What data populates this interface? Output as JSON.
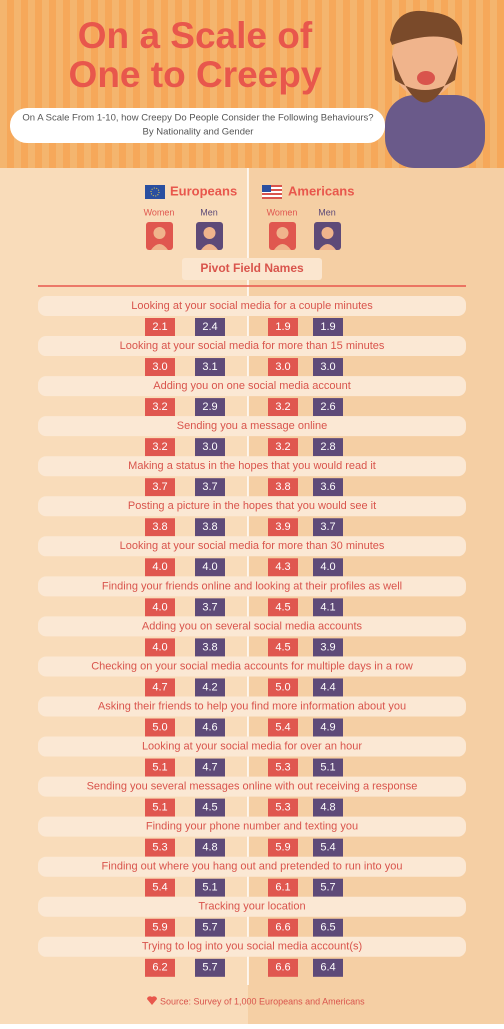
{
  "header": {
    "title_line1": "On a Scale of",
    "title_line2": "One to Creepy",
    "subtitle_line1": "On A Scale From 1-10, how Creepy Do People Consider the Following Behaviours?",
    "subtitle_line2": "By Nationality and Gender"
  },
  "legend": {
    "groups": [
      "Europeans",
      "Americans"
    ],
    "women": "Women",
    "men": "Men",
    "field_title": "Pivot Field Names"
  },
  "table": {
    "rows": [
      [
        "Looking at your social media for a couple minutes",
        "2.1",
        "2.4",
        "1.9",
        "1.9"
      ],
      [
        "Looking at your social media for more than 15 minutes",
        "3.0",
        "3.1",
        "3.0",
        "3.0"
      ],
      [
        "Adding you on one social media account",
        "3.2",
        "2.9",
        "3.2",
        "2.6"
      ],
      [
        "Sending you a message online",
        "3.2",
        "3.0",
        "3.2",
        "2.8"
      ],
      [
        "Making a status in the hopes that you would read it",
        "3.7",
        "3.7",
        "3.8",
        "3.6"
      ],
      [
        "Posting a picture in the hopes that you would see it",
        "3.8",
        "3.8",
        "3.9",
        "3.7"
      ],
      [
        "Looking at your social media for more than 30 minutes",
        "4.0",
        "4.0",
        "4.3",
        "4.0"
      ],
      [
        "Finding your friends online and looking at their profiles as well",
        "4.0",
        "3.7",
        "4.5",
        "4.1"
      ],
      [
        "Adding you on several social media accounts",
        "4.0",
        "3.8",
        "4.5",
        "3.9"
      ],
      [
        "Checking on your social media accounts for multiple days in a row",
        "4.7",
        "4.2",
        "5.0",
        "4.4"
      ],
      [
        "Asking their friends to help you find more information about you",
        "5.0",
        "4.6",
        "5.4",
        "4.9"
      ],
      [
        "Looking at your social media for over an hour",
        "5.1",
        "4.7",
        "5.3",
        "5.1"
      ],
      [
        "Sending you several messages online with out receiving a response",
        "5.1",
        "4.5",
        "5.3",
        "4.8"
      ],
      [
        "Finding your phone number and texting you",
        "5.3",
        "4.8",
        "5.9",
        "5.4"
      ],
      [
        "Finding out where you hang out and pretended to run into you",
        "5.4",
        "5.1",
        "6.1",
        "5.7"
      ],
      [
        "Tracking your location",
        "5.9",
        "5.7",
        "6.6",
        "6.5"
      ],
      [
        "Trying to log into you social media account(s)",
        "6.2",
        "5.7",
        "6.6",
        "6.4"
      ]
    ]
  },
  "footer": {
    "source": "Source: Survey of 1,000 Europeans and Americans"
  }
}
